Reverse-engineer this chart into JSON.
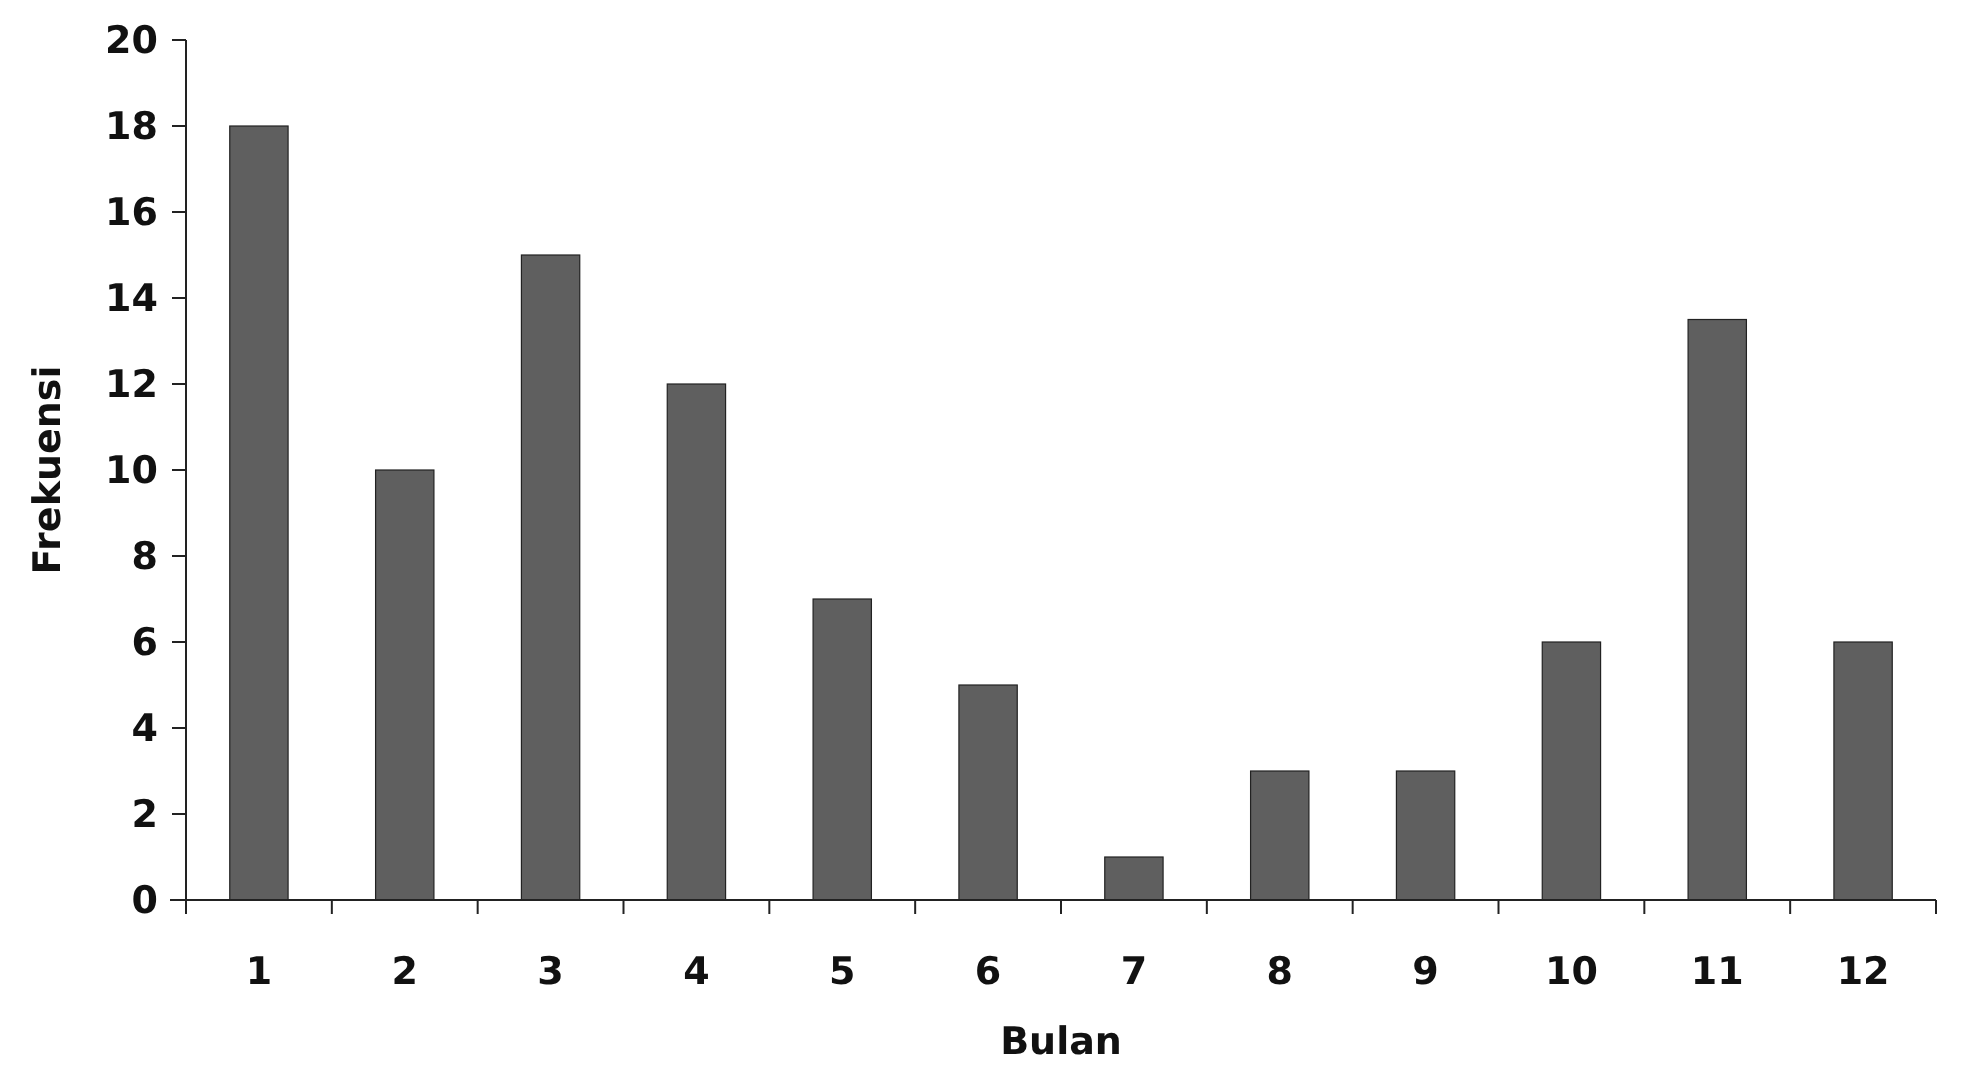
{
  "chart_data": {
    "type": "bar",
    "xlabel": "Bulan",
    "ylabel": "Frekuensi",
    "categories": [
      "1",
      "2",
      "3",
      "4",
      "5",
      "6",
      "7",
      "8",
      "9",
      "10",
      "11",
      "12"
    ],
    "values": [
      18,
      10,
      15,
      12,
      7,
      5,
      1,
      3,
      3,
      6,
      13.5,
      6
    ],
    "color": "#5f5f5f",
    "ylim": [
      0,
      20
    ],
    "yticks": [
      0,
      2,
      4,
      6,
      8,
      10,
      12,
      14,
      16,
      18,
      20
    ],
    "grid": false
  }
}
